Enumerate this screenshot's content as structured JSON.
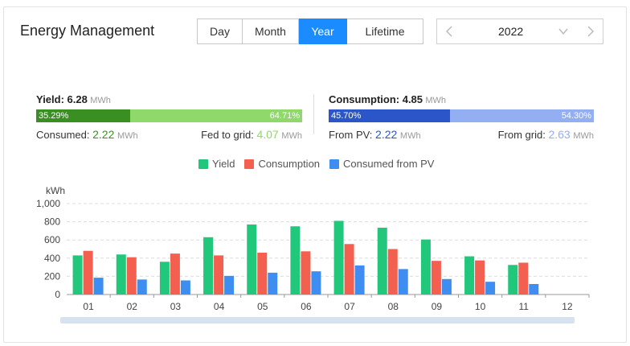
{
  "title": "Energy Management",
  "tabs": [
    {
      "label": "Day",
      "active": false
    },
    {
      "label": "Month",
      "active": false
    },
    {
      "label": "Year",
      "active": true
    },
    {
      "label": "Lifetime",
      "active": false
    }
  ],
  "year_picker": {
    "value": "2022"
  },
  "yield": {
    "label": "Yield:",
    "value": "6.28",
    "unit": "MWh",
    "bar": {
      "left_pct": "35.29%",
      "right_pct": "64.71%",
      "left_color": "#3a8f22",
      "right_color": "#8fd86a"
    },
    "consumed_label": "Consumed:",
    "consumed_value": "2.22",
    "consumed_unit": "MWh",
    "fed_label": "Fed to grid:",
    "fed_value": "4.07",
    "fed_unit": "MWh"
  },
  "consumption": {
    "label": "Consumption:",
    "value": "4.85",
    "unit": "MWh",
    "bar": {
      "left_pct": "45.70%",
      "right_pct": "54.30%",
      "left_color": "#2b56c9",
      "right_color": "#94aef3"
    },
    "from_pv_label": "From PV:",
    "from_pv_value": "2.22",
    "from_pv_unit": "MWh",
    "from_grid_label": "From grid:",
    "from_grid_value": "2.63",
    "from_grid_unit": "MWh"
  },
  "colors": {
    "accent": "#1a8cff",
    "yield_green": "#3a8f22",
    "pv_blue": "#2b56c9"
  },
  "chart_data": {
    "type": "bar",
    "ylabel": "kWh",
    "ylim": [
      0,
      1000
    ],
    "yticks": [
      "0",
      "200",
      "400",
      "600",
      "800",
      "1,000"
    ],
    "grid": true,
    "legend_position": "top",
    "categories": [
      "01",
      "02",
      "03",
      "04",
      "05",
      "06",
      "07",
      "08",
      "09",
      "10",
      "11",
      "12"
    ],
    "series": [
      {
        "name": "Yield",
        "color": "#21c77b",
        "values": [
          430,
          440,
          360,
          630,
          770,
          750,
          810,
          735,
          605,
          420,
          325,
          0
        ]
      },
      {
        "name": "Consumption",
        "color": "#f4604f",
        "values": [
          480,
          410,
          450,
          430,
          460,
          475,
          555,
          500,
          370,
          375,
          350,
          0
        ]
      },
      {
        "name": "Consumed from PV",
        "color": "#3d8ef0",
        "values": [
          185,
          165,
          155,
          205,
          240,
          255,
          320,
          280,
          170,
          140,
          115,
          0
        ]
      }
    ]
  }
}
